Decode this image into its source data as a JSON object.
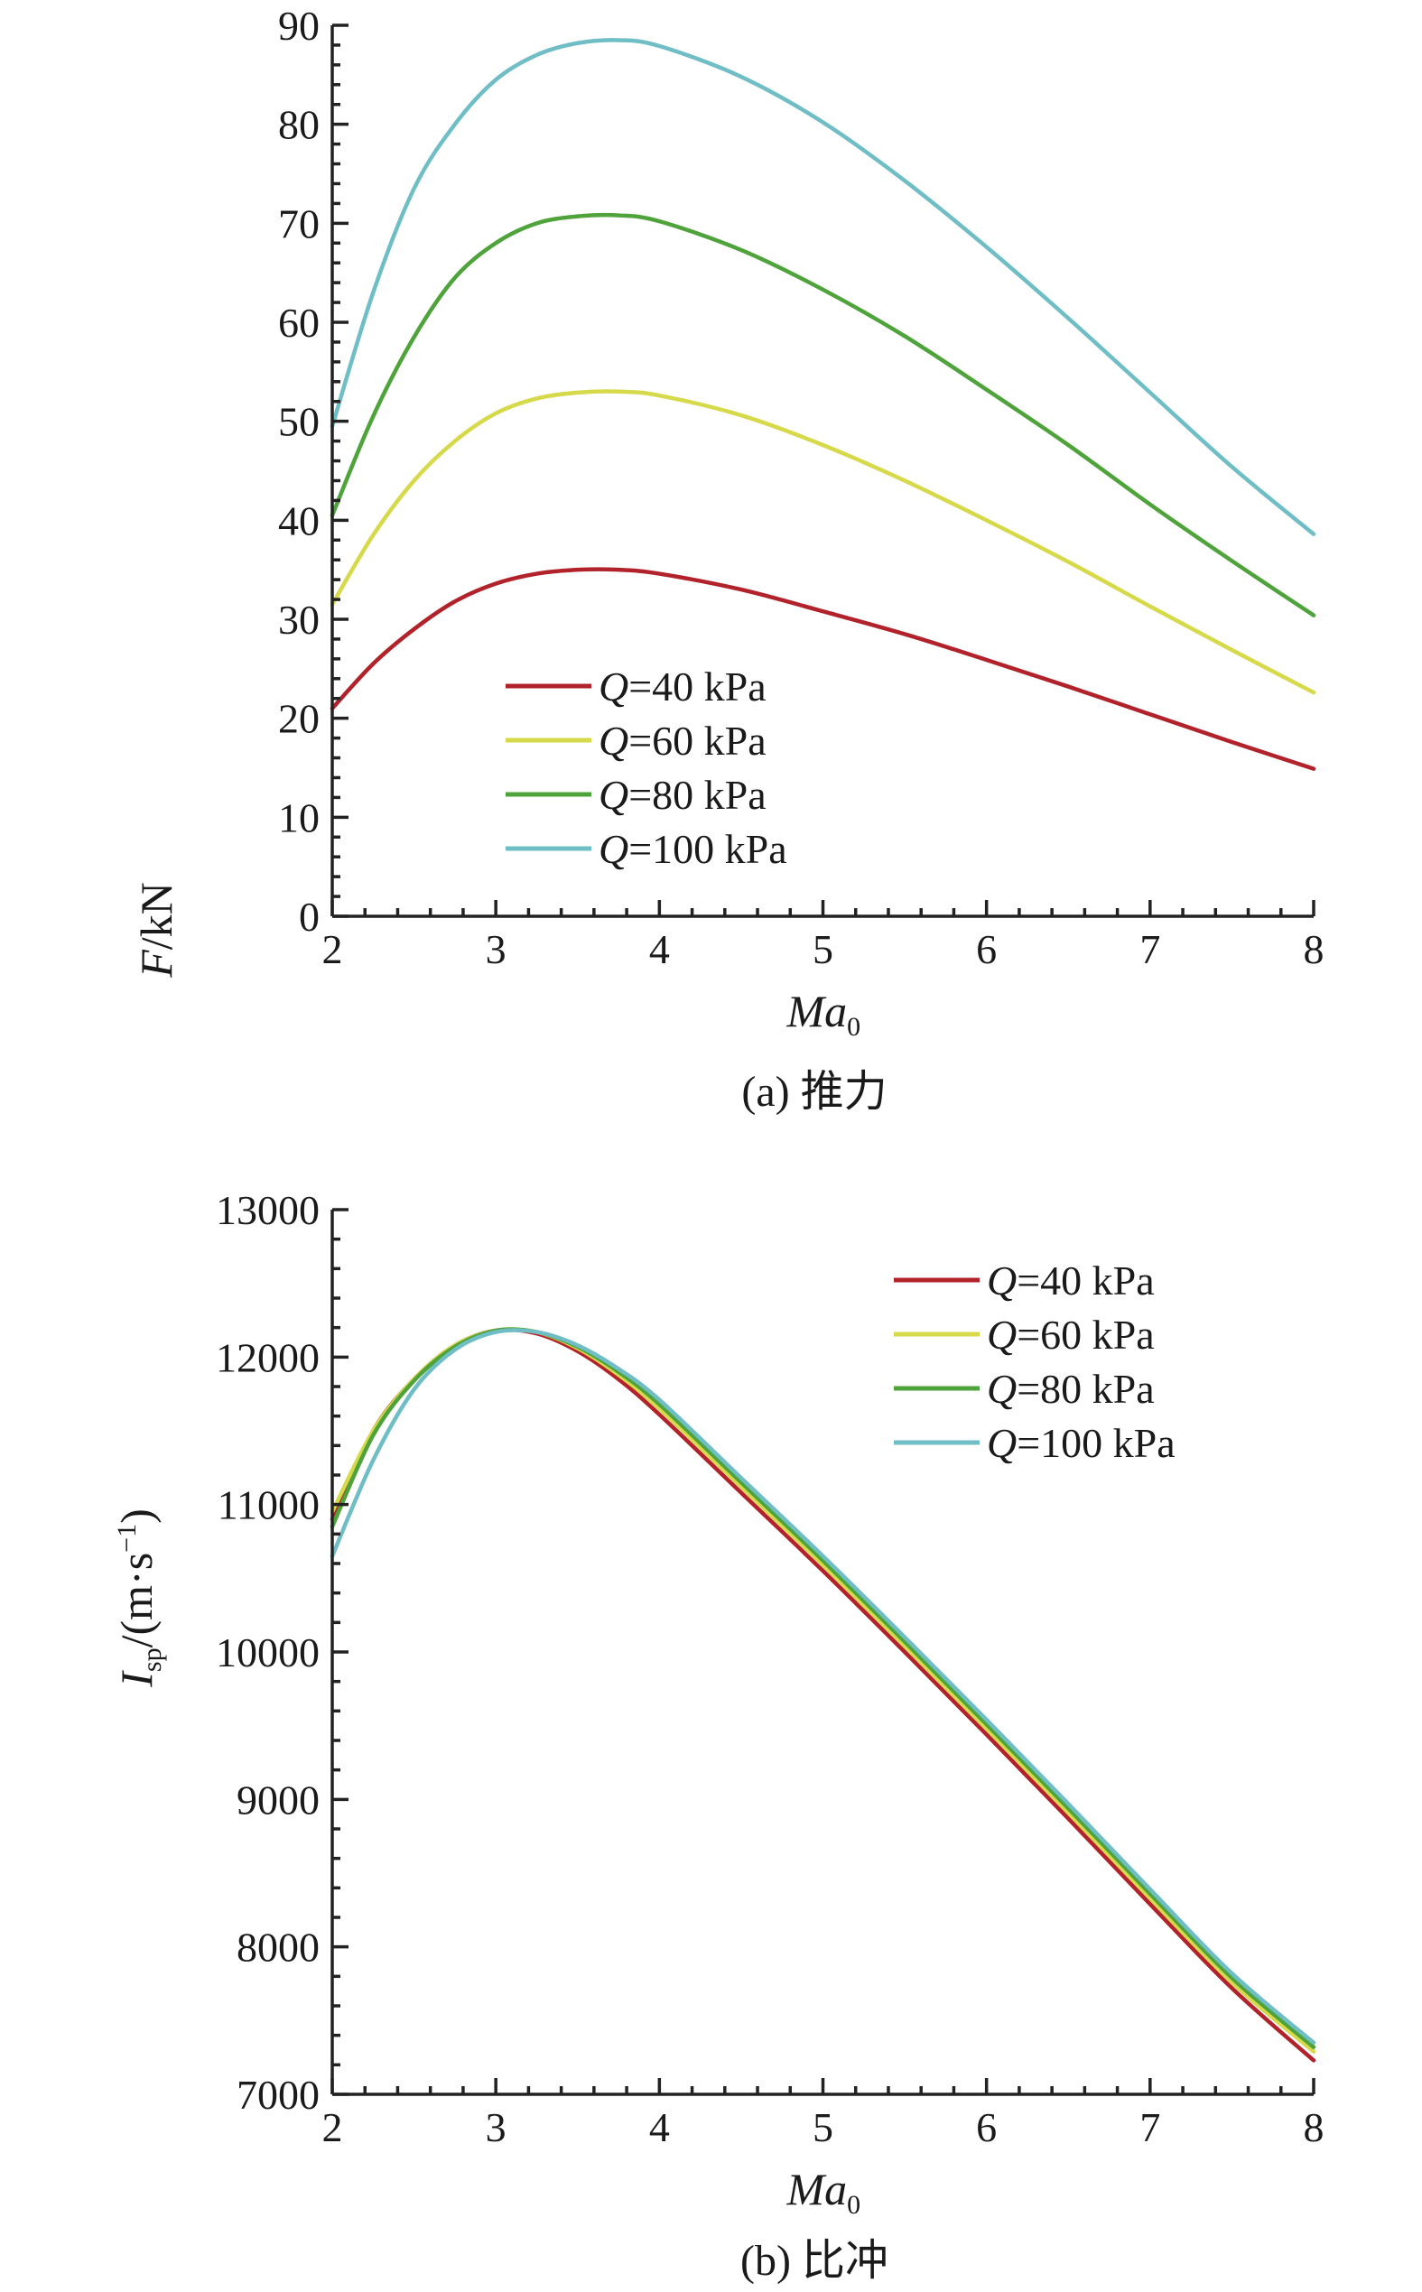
{
  "chart_data": [
    {
      "type": "line",
      "caption": "(a) 推力",
      "xlabel_main": "Ma",
      "xlabel_sub": "0",
      "ylabel_main": "F",
      "ylabel_rest": "/kN",
      "xlim": [
        2,
        8
      ],
      "ylim": [
        0,
        90
      ],
      "xticks": [
        2,
        3,
        4,
        5,
        6,
        7,
        8
      ],
      "yticks": [
        0,
        10,
        20,
        30,
        40,
        50,
        60,
        70,
        80,
        90
      ],
      "legend_position": "lower-center",
      "series": [
        {
          "name": "Q=40 kPa",
          "q": "Q",
          "rest": "=40 kPa",
          "color": "#b2222a",
          "x": [
            2.0,
            2.25,
            2.5,
            2.75,
            3.0,
            3.25,
            3.5,
            3.75,
            4.0,
            4.5,
            5.0,
            5.5,
            6.0,
            6.5,
            7.0,
            7.5,
            8.0
          ],
          "y": [
            21.0,
            25.5,
            29.0,
            31.8,
            33.6,
            34.6,
            35.0,
            35.0,
            34.6,
            33.0,
            30.8,
            28.5,
            25.9,
            23.2,
            20.4,
            17.6,
            14.9
          ]
        },
        {
          "name": "Q=60 kPa",
          "q": "Q",
          "rest": "=60 kPa",
          "color": "#d6d94a",
          "x": [
            2.0,
            2.25,
            2.5,
            2.75,
            3.0,
            3.25,
            3.5,
            3.75,
            4.0,
            4.5,
            5.0,
            5.5,
            6.0,
            6.5,
            7.0,
            7.5,
            8.0
          ],
          "y": [
            31.5,
            38.5,
            44.0,
            48.0,
            50.8,
            52.3,
            52.9,
            53.0,
            52.6,
            50.6,
            47.6,
            44.0,
            40.0,
            35.8,
            31.3,
            26.9,
            22.6
          ]
        },
        {
          "name": "Q=80 kPa",
          "q": "Q",
          "rest": "=80 kPa",
          "color": "#4ea33a",
          "x": [
            2.0,
            2.25,
            2.5,
            2.75,
            3.0,
            3.25,
            3.5,
            3.75,
            4.0,
            4.5,
            5.0,
            5.5,
            6.0,
            6.5,
            7.0,
            7.5,
            8.0
          ],
          "y": [
            40.5,
            50.5,
            58.5,
            64.5,
            68.0,
            70.0,
            70.7,
            70.8,
            70.2,
            67.3,
            63.3,
            58.6,
            53.2,
            47.6,
            41.6,
            35.9,
            30.4
          ]
        },
        {
          "name": "Q=100 kPa",
          "q": "Q",
          "rest": "=100 kPa",
          "color": "#6fbec6",
          "x": [
            2.0,
            2.25,
            2.5,
            2.75,
            3.0,
            3.25,
            3.5,
            3.75,
            4.0,
            4.5,
            5.0,
            5.5,
            6.0,
            6.5,
            7.0,
            7.5,
            8.0
          ],
          "y": [
            49.5,
            63.0,
            73.5,
            80.0,
            84.5,
            87.0,
            88.2,
            88.5,
            87.9,
            84.8,
            80.2,
            74.3,
            67.6,
            60.4,
            52.9,
            45.4,
            38.6
          ]
        }
      ]
    },
    {
      "type": "line",
      "caption": "(b) 比冲",
      "xlabel_main": "Ma",
      "xlabel_sub": "0",
      "ylabel_main": "I",
      "ylabel_sub": "sp",
      "ylabel_rest": "/(m·s",
      "ylabel_sup": "−1",
      "ylabel_close": ")",
      "xlim": [
        2,
        8
      ],
      "ylim": [
        7000,
        13000
      ],
      "xticks": [
        2,
        3,
        4,
        5,
        6,
        7,
        8
      ],
      "yticks": [
        7000,
        8000,
        9000,
        10000,
        11000,
        12000,
        13000
      ],
      "legend_position": "top-right",
      "series": [
        {
          "name": "Q=40 kPa",
          "q": "Q",
          "rest": "=40 kPa",
          "color": "#b2222a",
          "x": [
            2.0,
            2.25,
            2.5,
            2.75,
            3.0,
            3.25,
            3.5,
            3.75,
            4.0,
            4.5,
            5.0,
            5.5,
            6.0,
            6.5,
            7.0,
            7.5,
            8.0
          ],
          "y": [
            10900,
            11500,
            11850,
            12080,
            12180,
            12160,
            12040,
            11850,
            11610,
            11080,
            10550,
            10000,
            9440,
            8870,
            8290,
            7720,
            7230
          ]
        },
        {
          "name": "Q=60 kPa",
          "q": "Q",
          "rest": "=60 kPa",
          "color": "#d6d94a",
          "x": [
            2.0,
            2.25,
            2.5,
            2.75,
            3.0,
            3.25,
            3.5,
            3.75,
            4.0,
            4.5,
            5.0,
            5.5,
            6.0,
            6.5,
            7.0,
            7.5,
            8.0
          ],
          "y": [
            10950,
            11500,
            11850,
            12080,
            12180,
            12170,
            12060,
            11880,
            11650,
            11120,
            10590,
            10040,
            9480,
            8910,
            8330,
            7760,
            7290
          ]
        },
        {
          "name": "Q=80 kPa",
          "q": "Q",
          "rest": "=80 kPa",
          "color": "#4ea33a",
          "x": [
            2.0,
            2.25,
            2.5,
            2.75,
            3.0,
            3.25,
            3.5,
            3.75,
            4.0,
            4.5,
            5.0,
            5.5,
            6.0,
            6.5,
            7.0,
            7.5,
            8.0
          ],
          "y": [
            10850,
            11470,
            11840,
            12070,
            12180,
            12170,
            12070,
            11900,
            11680,
            11150,
            10620,
            10070,
            9510,
            8940,
            8360,
            7790,
            7320
          ]
        },
        {
          "name": "Q=100 kPa",
          "q": "Q",
          "rest": "=100 kPa",
          "color": "#6fbec6",
          "x": [
            2.0,
            2.25,
            2.5,
            2.75,
            3.0,
            3.25,
            3.5,
            3.75,
            4.0,
            4.5,
            5.0,
            5.5,
            6.0,
            6.5,
            7.0,
            7.5,
            8.0
          ],
          "y": [
            10650,
            11300,
            11780,
            12050,
            12170,
            12170,
            12080,
            11920,
            11710,
            11180,
            10650,
            10100,
            9540,
            8970,
            8390,
            7820,
            7350
          ]
        }
      ]
    }
  ]
}
